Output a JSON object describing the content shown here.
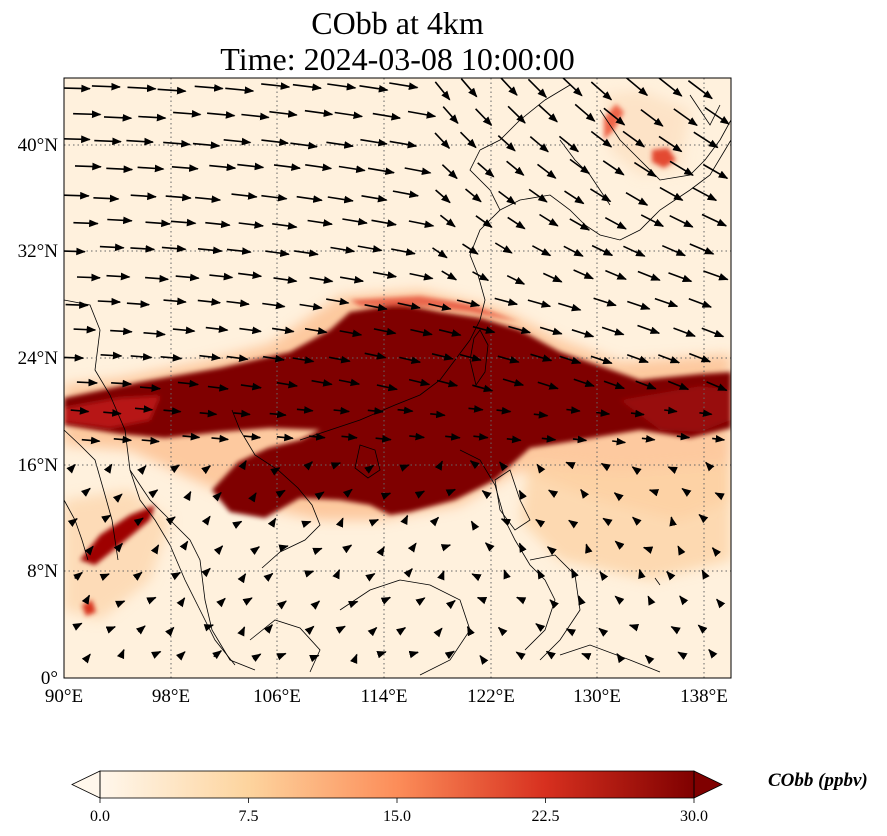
{
  "figure": {
    "title": "CObb at 4km",
    "subtitle": "Time: 2024-03-08 10:00:00"
  },
  "map": {
    "lon_range": [
      90,
      140
    ],
    "lat_range": [
      0,
      45
    ],
    "lon_ticks": [
      "90°E",
      "98°E",
      "106°E",
      "114°E",
      "122°E",
      "130°E",
      "138°E"
    ],
    "lat_ticks": [
      "0°",
      "8°N",
      "16°N",
      "24°N",
      "32°N",
      "40°N"
    ],
    "gridlines": true,
    "coastlines": true,
    "wind_vectors": true
  },
  "colorbar": {
    "label": "CObb (ppbv)",
    "ticks": [
      "0.0",
      "7.5",
      "15.0",
      "22.5",
      "30.0"
    ],
    "range": [
      0,
      30
    ],
    "colormap": "OrRd",
    "colors": [
      "#fff7ec",
      "#fdd49e",
      "#fc8d59",
      "#d7301f",
      "#7f0000"
    ],
    "extend": "both"
  },
  "colors": {
    "plume_max": "#800000",
    "plume_high": "#b30000",
    "plume_mid": "#ef6548",
    "background": "#fff1dd"
  }
}
